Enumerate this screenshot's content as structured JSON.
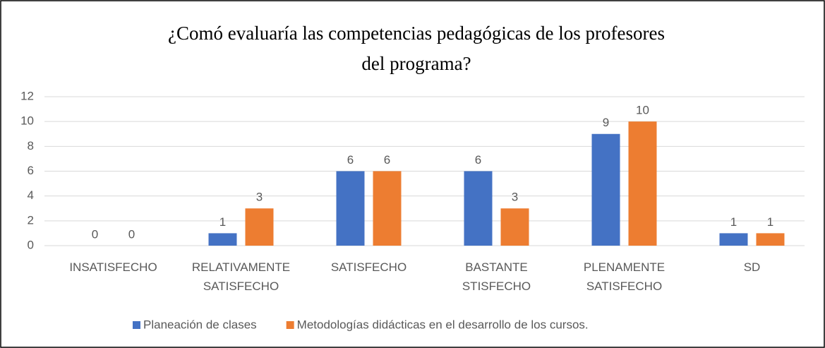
{
  "chart_data": {
    "type": "bar",
    "title": "¿Comó evaluaría las competencias pedagógicas de los profesores del programa?",
    "categories": [
      "INSATISFECHO",
      "RELATIVAMENTE SATISFECHO",
      "SATISFECHO",
      "BASTANTE STISFECHO",
      "PLENAMENTE SATISFECHO",
      "SD"
    ],
    "series": [
      {
        "name": "Planeación de clases",
        "color": "#4472c4",
        "values": [
          0,
          1,
          6,
          6,
          9,
          1
        ]
      },
      {
        "name": "Metodologías didácticas en el desarrollo de los cursos.",
        "color": "#ed7d31",
        "values": [
          0,
          3,
          6,
          3,
          10,
          1
        ]
      }
    ],
    "ylim": [
      0,
      12
    ],
    "yticks": [
      0,
      2,
      4,
      6,
      8,
      10,
      12
    ],
    "grid": true,
    "legend": "bottom"
  }
}
